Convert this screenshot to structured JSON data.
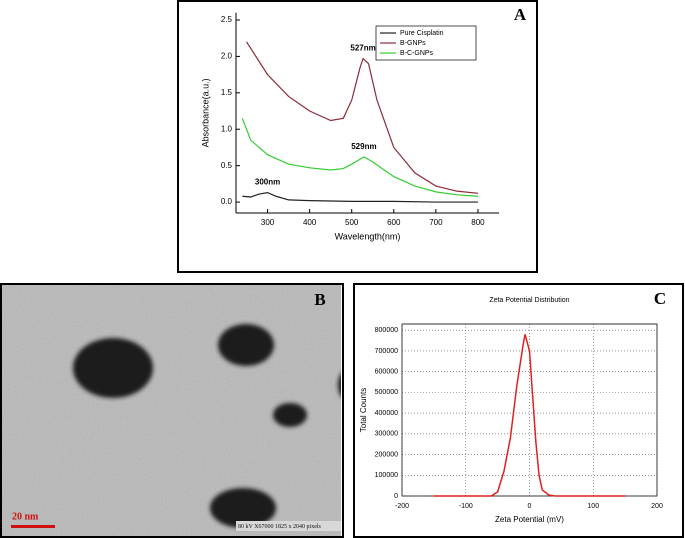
{
  "chart_data": [
    {
      "type": "line",
      "label": "A",
      "xlabel": "Wavelength(nm)",
      "ylabel": "Absorbance(a.u.)",
      "xlim": [
        225,
        850
      ],
      "xticks": [
        300,
        400,
        500,
        600,
        700,
        800
      ],
      "ylim": [
        -0.15,
        2.6
      ],
      "yticks": [
        {
          "value": 0,
          "label": "0.0"
        },
        0.5,
        {
          "value": 1,
          "label": "1.0"
        },
        1.5,
        {
          "value": 2,
          "label": "2.0"
        },
        2.5
      ],
      "grid": false,
      "legend": "top-right",
      "series": [
        {
          "name": "Pure Cisplatin",
          "color": "#222222",
          "x": [
            240,
            260,
            280,
            300,
            320,
            350,
            400,
            500,
            600,
            700,
            800
          ],
          "values": [
            0.08,
            0.07,
            0.11,
            0.13,
            0.08,
            0.03,
            0.02,
            0.01,
            0.01,
            0.0,
            0.0
          ]
        },
        {
          "name": "B-GNPs",
          "color": "#8b2a3a",
          "x": [
            250,
            300,
            350,
            400,
            450,
            480,
            500,
            520,
            527,
            540,
            560,
            600,
            650,
            700,
            750,
            800
          ],
          "values": [
            2.2,
            1.75,
            1.45,
            1.25,
            1.12,
            1.15,
            1.4,
            1.85,
            1.97,
            1.9,
            1.4,
            0.75,
            0.4,
            0.22,
            0.15,
            0.12
          ]
        },
        {
          "name": "B-C-GNPs",
          "color": "#33cc33",
          "x": [
            240,
            260,
            300,
            350,
            400,
            450,
            480,
            500,
            529,
            550,
            600,
            650,
            700,
            750,
            800
          ],
          "values": [
            1.15,
            0.85,
            0.65,
            0.52,
            0.47,
            0.44,
            0.46,
            0.52,
            0.62,
            0.55,
            0.35,
            0.22,
            0.14,
            0.1,
            0.08
          ]
        }
      ],
      "annotations": [
        {
          "text": "527nm",
          "x": 527,
          "y": 1.97
        },
        {
          "text": "529nm",
          "x": 529,
          "y": 0.62
        },
        {
          "text": "300nm",
          "x": 300,
          "y": 0.13
        }
      ]
    },
    {
      "type": "line",
      "label": "C",
      "title": "Zeta Potential Distribution",
      "xlabel": "Zeta Potential (mV)",
      "ylabel": "Total Counts",
      "xlim": [
        -200,
        200
      ],
      "xticks": [
        -200,
        -100,
        0,
        100,
        200
      ],
      "ylim": [
        0,
        830000
      ],
      "yticks": [
        0,
        100000,
        200000,
        300000,
        400000,
        500000,
        600000,
        700000,
        800000
      ],
      "grid": true,
      "color": "#e02020",
      "x": [
        -150,
        -60,
        -50,
        -40,
        -30,
        -20,
        -10,
        -7,
        0,
        5,
        10,
        15,
        20,
        30,
        40,
        150
      ],
      "values": [
        0,
        0,
        20000,
        120000,
        280000,
        530000,
        730000,
        780000,
        700000,
        480000,
        260000,
        100000,
        30000,
        5000,
        0,
        0
      ]
    }
  ],
  "image_panel": {
    "label": "B",
    "scale_bar": "20 nm",
    "caption": "80 kV X67000 1825 x 2040 pixels"
  }
}
